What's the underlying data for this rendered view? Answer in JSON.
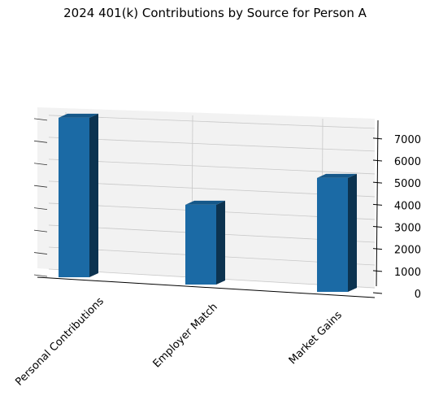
{
  "chart_data": {
    "type": "bar",
    "title": "2024 401(k) Contributions by Source for Person A",
    "categories": [
      "Personal Contributions",
      "Employer Match",
      "Market Gains"
    ],
    "values": [
      7000,
      3500,
      5000
    ],
    "xlabel": "",
    "ylabel": "",
    "zlim": [
      0,
      7000
    ],
    "z_ticks": [
      0,
      1000,
      2000,
      3000,
      4000,
      5000,
      6000,
      7000
    ],
    "grid": true,
    "legend": "none",
    "projection": "3d",
    "colors": {
      "bar_front": "#1b6aa5",
      "bar_side": "#0c3350",
      "bar_top": "#15588a",
      "pane": "#f2f2f2",
      "grid": "#c8c8c8"
    }
  }
}
